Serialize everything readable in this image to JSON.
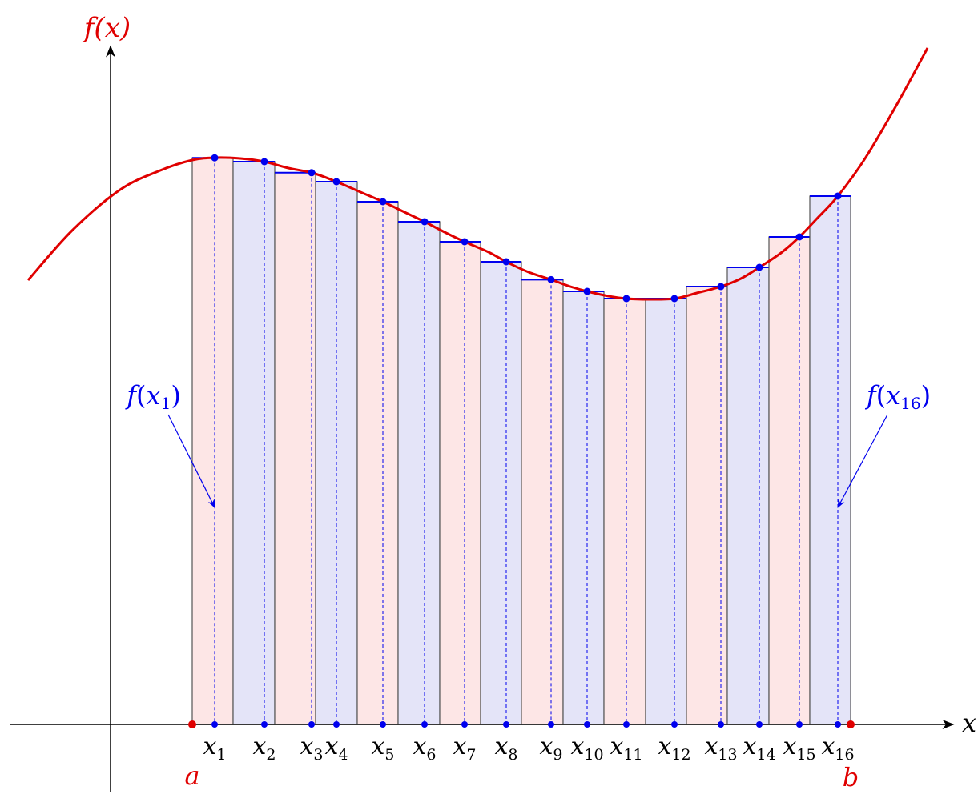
{
  "y_axis_label": "f(x)",
  "x_axis_label": "x",
  "endpoint_a": "a",
  "endpoint_b": "b",
  "callout_first": {
    "func": "f",
    "var": "x",
    "sub": "1"
  },
  "callout_last": {
    "func": "f",
    "var": "x",
    "sub": "16"
  },
  "sample_labels": [
    {
      "var": "x",
      "sub": "1"
    },
    {
      "var": "x",
      "sub": "2"
    },
    {
      "var": "x",
      "sub": "3"
    },
    {
      "var": "x",
      "sub": "4"
    },
    {
      "var": "x",
      "sub": "5"
    },
    {
      "var": "x",
      "sub": "6"
    },
    {
      "var": "x",
      "sub": "7"
    },
    {
      "var": "x",
      "sub": "8"
    },
    {
      "var": "x",
      "sub": "9"
    },
    {
      "var": "x",
      "sub": "10"
    },
    {
      "var": "x",
      "sub": "11"
    },
    {
      "var": "x",
      "sub": "12"
    },
    {
      "var": "x",
      "sub": "13"
    },
    {
      "var": "x",
      "sub": "14"
    },
    {
      "var": "x",
      "sub": "15"
    },
    {
      "var": "x",
      "sub": "16"
    }
  ],
  "colors": {
    "curve": "#e00000",
    "points": "#0000ee",
    "rect_outline": "#555555",
    "rect_top": "#0000ee",
    "fill_pink": "#fde6e6",
    "fill_blue": "#e4e4f8",
    "axis": "#000000",
    "endpoint": "#e00000"
  }
}
